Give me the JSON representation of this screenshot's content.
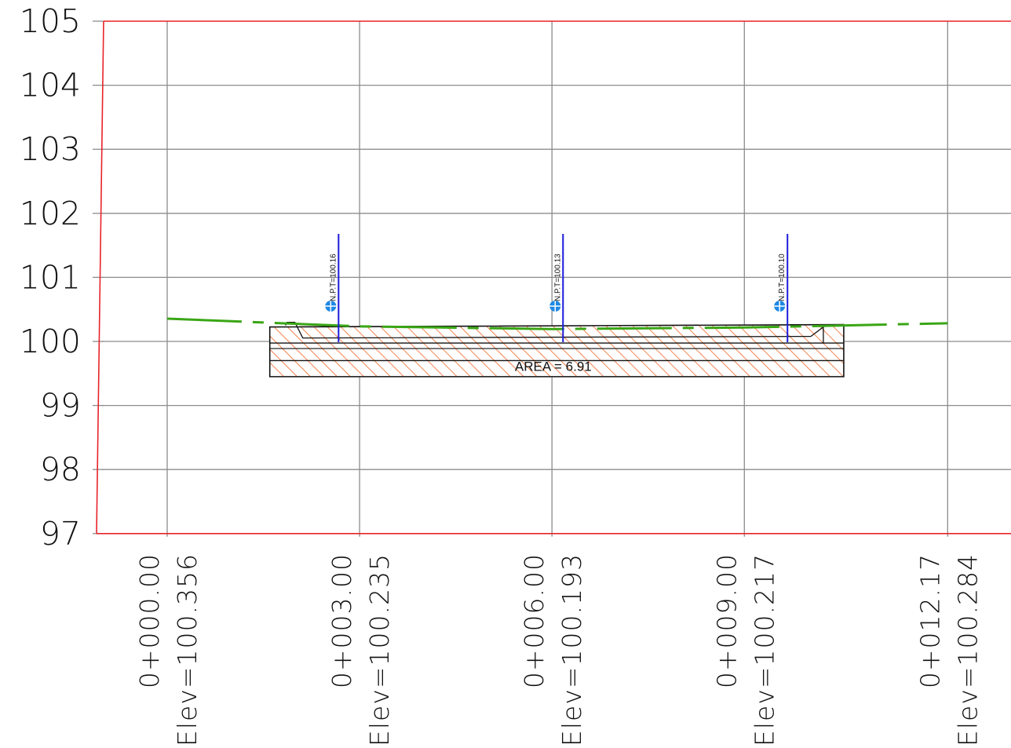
{
  "chart_data": {
    "type": "cross-section",
    "y_ticks": [
      "105",
      "104",
      "103",
      "102",
      "101",
      "100",
      "99",
      "98",
      "97"
    ],
    "stations": [
      {
        "station": "0+000.00",
        "elev": "Elev=100.356",
        "offset": 0,
        "ground": 100.356
      },
      {
        "station": "0+003.00",
        "elev": "Elev=100.235",
        "offset": 3,
        "ground": 100.235
      },
      {
        "station": "0+006.00",
        "elev": "Elev=100.193",
        "offset": 6,
        "ground": 100.193
      },
      {
        "station": "0+009.00",
        "elev": "Elev=100.217",
        "offset": 9,
        "ground": 100.217
      },
      {
        "station": "0+012.17",
        "elev": "Elev=100.284",
        "offset": 12.17,
        "ground": 100.284
      }
    ],
    "npt_markers": [
      {
        "label": "N.P.T=100.16",
        "offset": 2.55
      },
      {
        "label": "N.P.T=100.13",
        "offset": 6.05
      },
      {
        "label": "N.P.T=100.10",
        "offset": 9.55
      }
    ],
    "section": {
      "area_label": "AREA = 6.91",
      "offset_start": 1.6,
      "offset_end": 10.55,
      "top": 100.25,
      "layer_1": 99.95,
      "layer_2": 99.75,
      "bottom": 99.45
    },
    "ylim": [
      97,
      105
    ],
    "colors": {
      "frame": "#e8232a",
      "grid": "#8c8c8c",
      "ground": "#3aa616",
      "hatch": "#f26522",
      "marker": "#1a1adb",
      "marker_symbol": "#1e88e5"
    }
  }
}
